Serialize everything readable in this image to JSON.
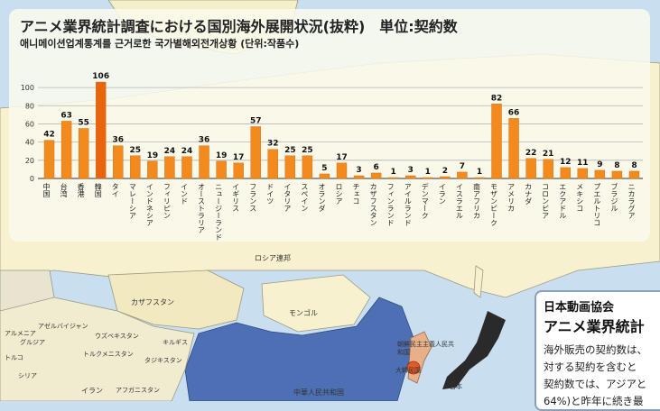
{
  "title": "アニメ業界統計調査における国別海外展開状況(抜粋)　単位:契約数",
  "subtitle": "애니메이션업계통계를 근거로한 국가별해외전개상황 (단위:작품수)",
  "chart_data": {
    "type": "bar",
    "title": "アニメ業界統計調査における国別海外展開状況(抜粋)　単位:契約数",
    "ylim": [
      0,
      110
    ],
    "yticks": [
      0,
      20,
      40,
      60,
      80,
      100
    ],
    "grid": true,
    "bar_color": "#f28a1e",
    "highlight_color": "#e8650e",
    "categories": [
      "中国",
      "台湾",
      "香港",
      "韓国",
      "タイ",
      "マレーシア",
      "インドネシア",
      "フィリピン",
      "インド",
      "オーストラリア",
      "ニュージーランド",
      "イギリス",
      "フランス",
      "ドイツ",
      "イタリア",
      "スペイン",
      "オランダ",
      "ロシア",
      "チェコ",
      "カザフスタン",
      "フィンランド",
      "アイルランド",
      "デンマーク",
      "イラン",
      "イスラエル",
      "南アフリカ",
      "モザンビーク",
      "アメリカ",
      "カナダ",
      "コロンビア",
      "エクアドル",
      "メキシコ",
      "プエルトリコ",
      "ブラジル",
      "ニカラグア"
    ],
    "values": [
      42,
      63,
      55,
      106,
      36,
      25,
      19,
      24,
      24,
      36,
      19,
      17,
      57,
      32,
      25,
      25,
      5,
      17,
      3,
      6,
      1,
      3,
      1,
      2,
      7,
      1,
      82,
      66,
      22,
      21,
      12,
      11,
      9,
      8,
      8
    ]
  },
  "map_labels": [
    "ロシア連邦",
    "カザフスタン",
    "モンゴル",
    "ウズベキスタン",
    "アゼルバイジャン",
    "トルクメニスタン",
    "キルギス",
    "タジキスタン",
    "イラン",
    "アフガニスタン",
    "シリア",
    "トルコ",
    "グルジア",
    "アルメニア",
    "中華人民共和国",
    "朝鮮民主主義人民共和国",
    "大韓民国",
    "日本"
  ],
  "info_box": {
    "org": "日本動画協会",
    "heading": "アニメ業界統計",
    "lines": [
      "海外販売の契約数は、",
      "対する契約を含むと",
      "契約数では、アジアと",
      "64%)と昨年に続き最"
    ]
  }
}
